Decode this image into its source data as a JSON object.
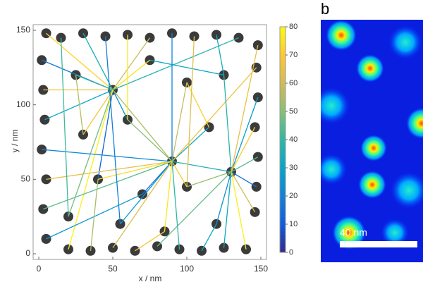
{
  "panel_label": "b",
  "scale_bar_label": "40 nm",
  "chart_data": {
    "type": "scatter",
    "xlabel": "x / nm",
    "ylabel": "y / nm",
    "xlim": [
      0,
      150
    ],
    "ylim": [
      0,
      150
    ],
    "xticks": [
      0,
      50,
      100,
      150
    ],
    "yticks": [
      0,
      50,
      100,
      150
    ],
    "clim": [
      0,
      80
    ],
    "cticks": [
      0,
      10,
      20,
      30,
      40,
      50,
      60,
      70,
      80
    ],
    "colormap": [
      "#352a87",
      "#0f5cdd",
      "#1481d6",
      "#06a4ca",
      "#2eb7a4",
      "#87bf77",
      "#d1bb59",
      "#fec832",
      "#f9fb0e"
    ],
    "color": "#3b3b3b",
    "x": [
      5,
      15,
      30,
      45,
      60,
      75,
      90,
      105,
      120,
      135,
      148,
      2,
      147,
      3,
      148,
      4,
      146,
      2,
      148,
      5,
      147,
      3,
      146,
      5,
      20,
      35,
      50,
      65,
      80,
      95,
      110,
      125,
      140,
      25,
      50,
      75,
      100,
      125,
      30,
      60,
      90,
      115,
      40,
      70,
      100,
      130,
      20,
      55,
      85,
      120
    ],
    "y": [
      148,
      145,
      148,
      146,
      147,
      145,
      148,
      146,
      147,
      145,
      140,
      130,
      125,
      110,
      105,
      90,
      85,
      70,
      65,
      50,
      45,
      30,
      28,
      10,
      3,
      2,
      4,
      2,
      5,
      3,
      2,
      4,
      3,
      120,
      110,
      130,
      115,
      120,
      80,
      90,
      62,
      85,
      50,
      40,
      45,
      55,
      25,
      20,
      15,
      20
    ],
    "edges": [
      [
        34,
        0,
        72
      ],
      [
        34,
        2,
        35
      ],
      [
        34,
        5,
        60
      ],
      [
        34,
        11,
        18
      ],
      [
        34,
        13,
        66
      ],
      [
        34,
        33,
        42
      ],
      [
        34,
        35,
        75
      ],
      [
        34,
        39,
        25
      ],
      [
        34,
        40,
        55
      ],
      [
        34,
        15,
        30
      ],
      [
        34,
        38,
        68
      ],
      [
        34,
        42,
        12
      ],
      [
        34,
        46,
        48
      ],
      [
        34,
        24,
        78
      ],
      [
        34,
        9,
        38
      ],
      [
        40,
        17,
        22
      ],
      [
        40,
        19,
        64
      ],
      [
        40,
        21,
        45
      ],
      [
        40,
        43,
        15
      ],
      [
        40,
        44,
        70
      ],
      [
        40,
        41,
        33
      ],
      [
        40,
        36,
        58
      ],
      [
        40,
        47,
        27
      ],
      [
        40,
        48,
        76
      ],
      [
        40,
        29,
        40
      ],
      [
        40,
        26,
        62
      ],
      [
        40,
        6,
        20
      ],
      [
        40,
        39,
        50
      ],
      [
        40,
        42,
        74
      ],
      [
        40,
        45,
        36
      ],
      [
        40,
        12,
        66
      ],
      [
        45,
        14,
        28
      ],
      [
        45,
        16,
        70
      ],
      [
        45,
        18,
        44
      ],
      [
        45,
        20,
        16
      ],
      [
        45,
        22,
        60
      ],
      [
        45,
        31,
        32
      ],
      [
        45,
        32,
        78
      ],
      [
        45,
        49,
        24
      ],
      [
        45,
        44,
        52
      ],
      [
        45,
        37,
        38
      ],
      [
        45,
        10,
        65
      ],
      [
        45,
        28,
        46
      ],
      [
        33,
        38,
        56
      ],
      [
        35,
        37,
        30
      ],
      [
        36,
        41,
        71
      ],
      [
        1,
        46,
        42
      ],
      [
        3,
        47,
        19
      ],
      [
        7,
        44,
        63
      ],
      [
        8,
        37,
        34
      ],
      [
        4,
        39,
        77
      ],
      [
        23,
        43,
        26
      ],
      [
        25,
        42,
        54
      ],
      [
        27,
        48,
        69
      ],
      [
        30,
        49,
        31
      ]
    ]
  }
}
